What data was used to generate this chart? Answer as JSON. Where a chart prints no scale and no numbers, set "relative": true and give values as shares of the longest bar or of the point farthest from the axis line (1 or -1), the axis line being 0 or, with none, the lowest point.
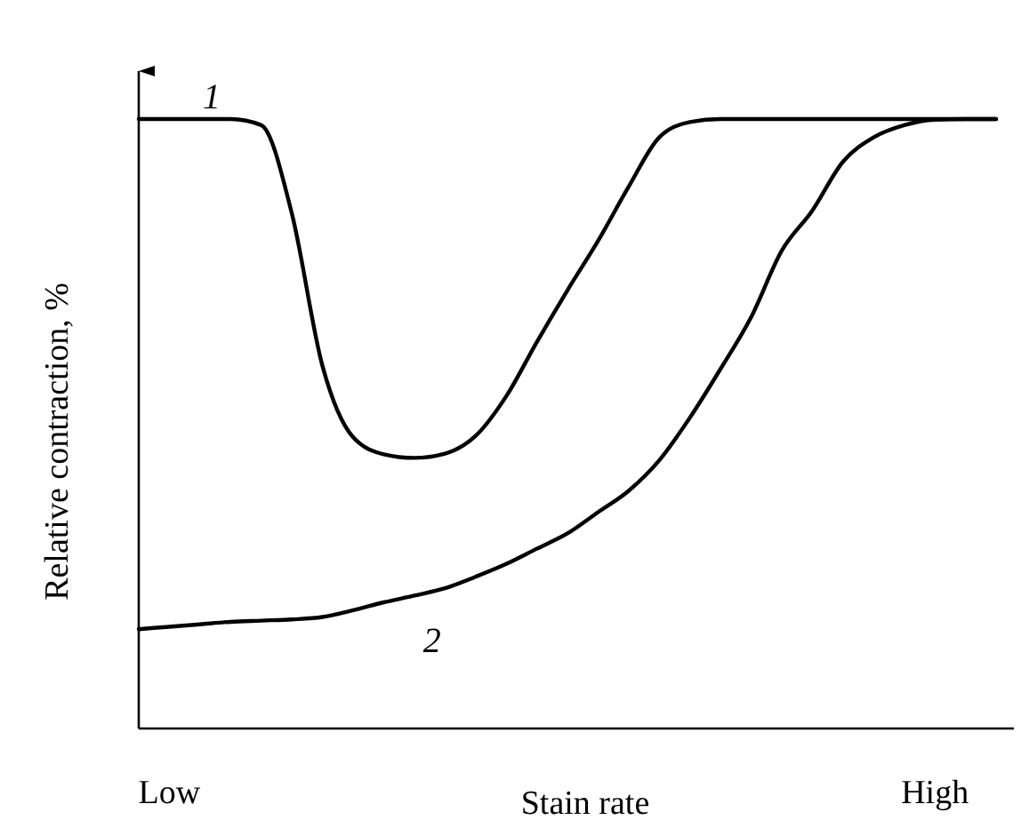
{
  "chart_data": {
    "type": "line",
    "relative": true,
    "xlabel": "Stain rate",
    "ylabel": "Relative contraction, %",
    "categories": [
      null,
      "Low",
      null,
      null,
      null,
      null,
      null,
      null,
      null,
      null,
      null,
      null,
      null,
      null,
      null,
      null,
      null,
      null,
      null,
      null,
      null,
      null,
      null,
      null,
      null,
      null,
      "High",
      null,
      null
    ],
    "grid": false,
    "legend": false,
    "marker": "none",
    "line_style": "solid",
    "series": [
      {
        "name": "1",
        "color": "#000000",
        "values": [
          1,
          1,
          1,
          1,
          0.99,
          0.845,
          0.595,
          0.478,
          0.45,
          0.444,
          0.451,
          0.48,
          0.545,
          0.634,
          0.719,
          0.8,
          0.889,
          0.97,
          0.995,
          1,
          1,
          1,
          1,
          1,
          1,
          1,
          1,
          1,
          1
        ]
      },
      {
        "name": "2",
        "color": "#000000",
        "values": [
          0.163,
          0.167,
          0.171,
          0.175,
          0.177,
          0.179,
          0.183,
          0.194,
          0.207,
          0.218,
          0.23,
          0.249,
          0.27,
          0.295,
          0.32,
          0.355,
          0.39,
          0.44,
          0.51,
          0.59,
          0.675,
          0.784,
          0.85,
          0.93,
          0.97,
          0.99,
          0.999,
          1,
          1
        ]
      }
    ]
  }
}
